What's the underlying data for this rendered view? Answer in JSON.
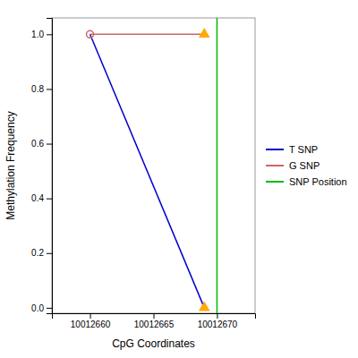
{
  "chart_data": {
    "type": "line",
    "xlabel": "CpG Coordinates",
    "ylabel": "Methylation Frequency",
    "series": [
      {
        "name": "T SNP",
        "type": "line",
        "color": "#0000cc",
        "x": [
          10012660,
          10012669
        ],
        "values": [
          1.0,
          0.0
        ]
      },
      {
        "name": "G SNP",
        "type": "line",
        "color": "#cc6666",
        "x": [
          10012660,
          10012669
        ],
        "values": [
          1.0,
          1.0
        ]
      },
      {
        "name": "SNP Position",
        "type": "vline",
        "color": "#00bb00",
        "x": [
          10012670
        ]
      },
      {
        "type": "scatter",
        "marker": "triangle",
        "color": "#ffaa00",
        "x": [
          10012669,
          10012669
        ],
        "values": [
          1.0,
          0.0
        ]
      },
      {
        "type": "scatter",
        "marker": "circle-open",
        "color": "#cc6666",
        "x": [
          10012660
        ],
        "values": [
          1.0
        ]
      }
    ],
    "xlim": [
      10012657,
      10012673
    ],
    "ylim": [
      -0.02,
      1.06
    ],
    "xticks": [
      10012660,
      10012665,
      10012670
    ],
    "yticks": [
      {
        "value": 0.0,
        "label": "0.0"
      },
      0.2,
      0.4,
      0.6,
      0.8,
      {
        "value": 1.0,
        "label": "1.0"
      }
    ],
    "legend": "right"
  }
}
